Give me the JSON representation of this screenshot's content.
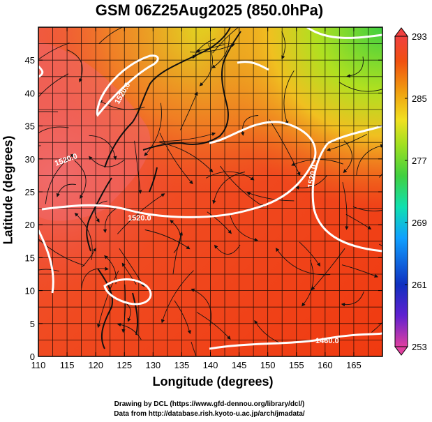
{
  "title": "GSM 06Z25Aug2025 (850.0hPa)",
  "axes": {
    "xlabel": "Longitude (degrees)",
    "ylabel": "Latitude  (degrees)",
    "x_ticks": [
      "110",
      "115",
      "120",
      "125",
      "130",
      "135",
      "140",
      "145",
      "150",
      "155",
      "160",
      "165"
    ],
    "y_ticks": [
      "0",
      "5",
      "10",
      "15",
      "20",
      "25",
      "30",
      "35",
      "40",
      "45"
    ]
  },
  "colorbar": {
    "labels": [
      "293",
      "285",
      "277",
      "269",
      "261",
      "253"
    ],
    "stops": [
      "#e040a0",
      "#6020d0",
      "#1030c0",
      "#10a0ff",
      "#10e0b0",
      "#40d040",
      "#a0e020",
      "#f0e020",
      "#f0a010",
      "#f05010",
      "#f04040"
    ]
  },
  "contour_labels": [
    "1520.0",
    "1520.0",
    "1520.0",
    "1460.0",
    "1520.0"
  ],
  "footer": {
    "line1": "Drawing by DCL (https://www.gfd-dennou.org/library/dcl/)",
    "line2": "Data from http://database.rish.kyoto-u.ac.jp/arch/jmadata/"
  },
  "chart_data": {
    "type": "heatmap",
    "title": "GSM 06Z25Aug2025 (850.0hPa)",
    "xlabel": "Longitude (degrees)",
    "ylabel": "Latitude  (degrees)",
    "xlim": [
      110,
      170
    ],
    "ylim": [
      0,
      50
    ],
    "colorbar_range": [
      253,
      293
    ],
    "colorbar_ticks": [
      293,
      285,
      277,
      269,
      261,
      253
    ],
    "contours": [
      {
        "level": 1520.0,
        "label": "1520.0"
      },
      {
        "level": 1460.0,
        "label": "1460.0"
      }
    ]
  }
}
